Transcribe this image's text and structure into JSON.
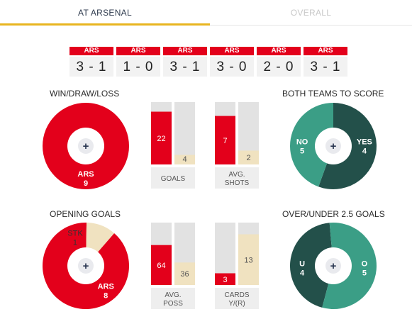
{
  "tabs": [
    {
      "label": "AT ARSENAL",
      "active": true
    },
    {
      "label": "OVERALL",
      "active": false
    }
  ],
  "recent_results": [
    {
      "team": "ARS",
      "score": "3 - 1"
    },
    {
      "team": "ARS",
      "score": "1 - 0"
    },
    {
      "team": "ARS",
      "score": "3 - 1"
    },
    {
      "team": "ARS",
      "score": "3 - 0"
    },
    {
      "team": "ARS",
      "score": "2 - 0"
    },
    {
      "team": "ARS",
      "score": "3 - 1"
    }
  ],
  "sections": {
    "wdl_title": "WIN/DRAW/LOSS",
    "btts_title": "BOTH TEAMS TO SCORE",
    "opening_title": "OPENING GOALS",
    "ou_title": "OVER/UNDER 2.5 GOALS"
  },
  "colors": {
    "red": "#e3001b",
    "cream": "#f0e2c0",
    "grey": "#e2e2e2",
    "dark_green": "#23504a",
    "light_green": "#3b9e86",
    "tab_accent": "#e8b51f"
  },
  "chart_data": [
    {
      "type": "pie",
      "name": "wdl",
      "slices": [
        {
          "label": "ARS",
          "value": 9,
          "color": "#e3001b"
        }
      ]
    },
    {
      "type": "pie",
      "name": "btts",
      "slices": [
        {
          "label": "NO",
          "value": 5,
          "color": "#23504a"
        },
        {
          "label": "YES",
          "value": 4,
          "color": "#3b9e86"
        }
      ]
    },
    {
      "type": "pie",
      "name": "opening",
      "slices": [
        {
          "label": "ARS",
          "value": 8,
          "color": "#e3001b"
        },
        {
          "label": "STK",
          "value": 1,
          "color": "#f0e2c0"
        }
      ]
    },
    {
      "type": "pie",
      "name": "ou",
      "slices": [
        {
          "label": "U",
          "value": 4,
          "color": "#23504a"
        },
        {
          "label": "O",
          "value": 5,
          "color": "#3b9e86"
        }
      ]
    },
    {
      "type": "bar",
      "name": "goals",
      "label": [
        "GOALS"
      ],
      "home": 22,
      "away": 4,
      "max": 26
    },
    {
      "type": "bar",
      "name": "shots",
      "label": [
        "AVG.",
        "SHOTS"
      ],
      "home": 7,
      "away": 2,
      "max": 9
    },
    {
      "type": "bar",
      "name": "poss",
      "label": [
        "AVG.",
        "POSS"
      ],
      "home": 64,
      "away": 36,
      "max": 100
    },
    {
      "type": "bar",
      "name": "cards",
      "label": [
        "CARDS",
        "Y/(R)"
      ],
      "home": 3,
      "away": 13,
      "max": 16
    }
  ]
}
